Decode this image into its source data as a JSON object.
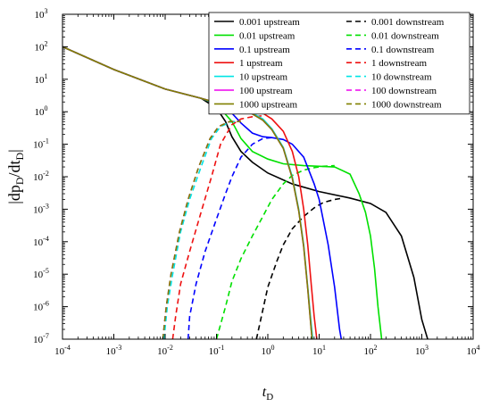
{
  "chart_data": {
    "type": "line",
    "xscale": "log",
    "yscale": "log",
    "xlim": [
      0.0001,
      10000
    ],
    "ylim": [
      1e-07,
      1000
    ],
    "grid": false,
    "legend_position": "top-right",
    "xlabel": {
      "main": "t",
      "sub": "D"
    },
    "ylabel": {
      "prefix": "|dp",
      "sub1": "D",
      "mid": "/dt",
      "sub2": "D",
      "suffix": "|"
    },
    "x_ticks": [
      {
        "base": "10",
        "exp": "-4",
        "value": 0.0001
      },
      {
        "base": "10",
        "exp": "-3",
        "value": 0.001
      },
      {
        "base": "10",
        "exp": "-2",
        "value": 0.01
      },
      {
        "base": "10",
        "exp": "-1",
        "value": 0.1
      },
      {
        "base": "10",
        "exp": "0",
        "value": 1
      },
      {
        "base": "10",
        "exp": "1",
        "value": 10
      },
      {
        "base": "10",
        "exp": "2",
        "value": 100
      },
      {
        "base": "10",
        "exp": "3",
        "value": 1000
      },
      {
        "base": "10",
        "exp": "4",
        "value": 10000
      }
    ],
    "y_ticks": [
      {
        "base": "10",
        "exp": "-7",
        "value": 1e-07
      },
      {
        "base": "10",
        "exp": "-6",
        "value": 1e-06
      },
      {
        "base": "10",
        "exp": "-5",
        "value": 1e-05
      },
      {
        "base": "10",
        "exp": "-4",
        "value": 0.0001
      },
      {
        "base": "10",
        "exp": "-3",
        "value": 0.001
      },
      {
        "base": "10",
        "exp": "-2",
        "value": 0.01
      },
      {
        "base": "10",
        "exp": "-1",
        "value": 0.1
      },
      {
        "base": "10",
        "exp": "0",
        "value": 1
      },
      {
        "base": "10",
        "exp": "1",
        "value": 10
      },
      {
        "base": "10",
        "exp": "2",
        "value": 100
      },
      {
        "base": "10",
        "exp": "3",
        "value": 1000
      }
    ],
    "series": [
      {
        "name": "0.001 upstream",
        "color": "#000000",
        "dash": "solid",
        "points": [
          [
            0.0001,
            100
          ],
          [
            0.001,
            20
          ],
          [
            0.01,
            5
          ],
          [
            0.05,
            2.6
          ],
          [
            0.1,
            1.3
          ],
          [
            0.15,
            0.5
          ],
          [
            0.2,
            0.17
          ],
          [
            0.3,
            0.06
          ],
          [
            0.5,
            0.028
          ],
          [
            1,
            0.013
          ],
          [
            3,
            0.006
          ],
          [
            10,
            0.0035
          ],
          [
            40,
            0.0022
          ],
          [
            100,
            0.0015
          ],
          [
            200,
            0.0008
          ],
          [
            400,
            0.00015
          ],
          [
            700,
            8e-06
          ],
          [
            1000,
            4e-07
          ],
          [
            1300,
            1e-07
          ]
        ]
      },
      {
        "name": "0.001 downstream",
        "color": "#000000",
        "dash": "dashed",
        "points": [
          [
            0.6,
            1e-07
          ],
          [
            0.8,
            8e-07
          ],
          [
            1,
            4e-06
          ],
          [
            1.5,
            2.5e-05
          ],
          [
            2,
            8e-05
          ],
          [
            3,
            0.00025
          ],
          [
            5,
            0.0006
          ],
          [
            8,
            0.0011
          ],
          [
            12,
            0.0016
          ],
          [
            20,
            0.002
          ],
          [
            30,
            0.0022
          ]
        ]
      },
      {
        "name": "0.01 upstream",
        "color": "#00e000",
        "dash": "solid",
        "points": [
          [
            0.0001,
            100
          ],
          [
            0.001,
            20
          ],
          [
            0.01,
            5
          ],
          [
            0.05,
            2.6
          ],
          [
            0.1,
            1.7
          ],
          [
            0.2,
            0.5
          ],
          [
            0.3,
            0.15
          ],
          [
            0.5,
            0.06
          ],
          [
            1,
            0.035
          ],
          [
            2,
            0.025
          ],
          [
            5,
            0.022
          ],
          [
            10,
            0.021
          ],
          [
            20,
            0.02
          ],
          [
            40,
            0.012
          ],
          [
            60,
            0.003
          ],
          [
            80,
            0.0008
          ],
          [
            100,
            0.00015
          ],
          [
            120,
            1.5e-05
          ],
          [
            140,
            1e-06
          ],
          [
            165,
            1e-07
          ]
        ]
      },
      {
        "name": "0.01 downstream",
        "color": "#00e000",
        "dash": "dashed",
        "points": [
          [
            0.1,
            1e-07
          ],
          [
            0.15,
            1e-06
          ],
          [
            0.2,
            6e-06
          ],
          [
            0.3,
            3e-05
          ],
          [
            0.5,
            0.00015
          ],
          [
            0.8,
            0.0006
          ],
          [
            1.2,
            0.002
          ],
          [
            2,
            0.006
          ],
          [
            3,
            0.011
          ],
          [
            5,
            0.016
          ],
          [
            8,
            0.019
          ],
          [
            12,
            0.021
          ],
          [
            20,
            0.022
          ]
        ]
      },
      {
        "name": "0.1 upstream",
        "color": "#0000ff",
        "dash": "solid",
        "points": [
          [
            0.0001,
            100
          ],
          [
            0.001,
            20
          ],
          [
            0.01,
            5
          ],
          [
            0.05,
            2.6
          ],
          [
            0.1,
            1.8
          ],
          [
            0.2,
            0.9
          ],
          [
            0.3,
            0.45
          ],
          [
            0.5,
            0.22
          ],
          [
            0.8,
            0.17
          ],
          [
            1.2,
            0.16
          ],
          [
            2,
            0.14
          ],
          [
            3,
            0.1
          ],
          [
            5,
            0.04
          ],
          [
            8,
            0.006
          ],
          [
            10,
            0.002
          ],
          [
            15,
            8e-05
          ],
          [
            20,
            4e-06
          ],
          [
            25,
            2e-07
          ],
          [
            27,
            1e-07
          ]
        ]
      },
      {
        "name": "0.1 downstream",
        "color": "#0000ff",
        "dash": "dashed",
        "points": [
          [
            0.028,
            1e-07
          ],
          [
            0.03,
            5e-07
          ],
          [
            0.04,
            5e-06
          ],
          [
            0.06,
            5e-05
          ],
          [
            0.1,
            0.0005
          ],
          [
            0.15,
            0.003
          ],
          [
            0.2,
            0.01
          ],
          [
            0.3,
            0.04
          ],
          [
            0.5,
            0.1
          ],
          [
            0.8,
            0.15
          ],
          [
            1.2,
            0.16
          ]
        ]
      },
      {
        "name": "1 upstream",
        "color": "#ee1111",
        "dash": "solid",
        "points": [
          [
            0.0001,
            100
          ],
          [
            0.001,
            20
          ],
          [
            0.01,
            5
          ],
          [
            0.05,
            2.6
          ],
          [
            0.1,
            1.9
          ],
          [
            0.3,
            1.3
          ],
          [
            0.5,
            1.1
          ],
          [
            0.8,
            0.9
          ],
          [
            1.2,
            0.6
          ],
          [
            2,
            0.25
          ],
          [
            3,
            0.06
          ],
          [
            4,
            0.01
          ],
          [
            5,
            0.001
          ],
          [
            6,
            8e-05
          ],
          [
            7,
            5e-06
          ],
          [
            8,
            5e-07
          ],
          [
            9,
            1e-07
          ]
        ]
      },
      {
        "name": "1 downstream",
        "color": "#ee1111",
        "dash": "dashed",
        "points": [
          [
            0.014,
            1e-07
          ],
          [
            0.016,
            5e-07
          ],
          [
            0.02,
            5e-06
          ],
          [
            0.03,
            5e-05
          ],
          [
            0.05,
            0.0008
          ],
          [
            0.08,
            0.01
          ],
          [
            0.12,
            0.1
          ],
          [
            0.2,
            0.4
          ],
          [
            0.3,
            0.6
          ],
          [
            0.5,
            0.7
          ],
          [
            0.8,
            0.75
          ]
        ]
      },
      {
        "name": "10 upstream",
        "color": "#00e5e5",
        "dash": "solid",
        "points": [
          [
            0.0001,
            100
          ],
          [
            0.001,
            20
          ],
          [
            0.01,
            5
          ],
          [
            0.05,
            2.6
          ],
          [
            0.1,
            1.9
          ],
          [
            0.2,
            1.5
          ],
          [
            0.4,
            1.1
          ],
          [
            0.8,
            0.6
          ],
          [
            1.2,
            0.3
          ],
          [
            2,
            0.08
          ],
          [
            3,
            0.01
          ],
          [
            4,
            0.001
          ],
          [
            5,
            8e-05
          ],
          [
            6,
            4e-06
          ],
          [
            7,
            3e-07
          ],
          [
            7.5,
            1e-07
          ]
        ]
      },
      {
        "name": "10 downstream",
        "color": "#00e5e5",
        "dash": "dashed",
        "points": [
          [
            0.0095,
            1e-07
          ],
          [
            0.011,
            1e-06
          ],
          [
            0.014,
            1e-05
          ],
          [
            0.02,
            0.0002
          ],
          [
            0.03,
            0.002
          ],
          [
            0.05,
            0.02
          ],
          [
            0.08,
            0.15
          ],
          [
            0.12,
            0.35
          ],
          [
            0.2,
            0.5
          ],
          [
            0.3,
            0.5
          ]
        ]
      },
      {
        "name": "100 upstream",
        "color": "#ee00ee",
        "dash": "solid",
        "points": [
          [
            0.0001,
            100
          ],
          [
            0.001,
            20
          ],
          [
            0.01,
            5
          ],
          [
            0.05,
            2.6
          ],
          [
            0.1,
            1.9
          ],
          [
            0.2,
            1.5
          ],
          [
            0.4,
            1.05
          ],
          [
            0.8,
            0.55
          ],
          [
            1.2,
            0.28
          ],
          [
            2,
            0.075
          ],
          [
            3,
            0.009
          ],
          [
            4,
            0.0009
          ],
          [
            5,
            7e-05
          ],
          [
            6,
            3.5e-06
          ],
          [
            7,
            2e-07
          ],
          [
            7.3,
            1e-07
          ]
        ]
      },
      {
        "name": "100 downstream",
        "color": "#ee00ee",
        "dash": "dashed",
        "points": [
          [
            0.009,
            1e-07
          ],
          [
            0.0105,
            1e-06
          ],
          [
            0.013,
            1e-05
          ],
          [
            0.019,
            0.0002
          ],
          [
            0.028,
            0.002
          ],
          [
            0.045,
            0.02
          ],
          [
            0.075,
            0.15
          ],
          [
            0.11,
            0.35
          ],
          [
            0.18,
            0.5
          ],
          [
            0.3,
            0.5
          ]
        ]
      },
      {
        "name": "1000 upstream",
        "color": "#808000",
        "dash": "solid",
        "points": [
          [
            0.0001,
            100
          ],
          [
            0.001,
            20
          ],
          [
            0.01,
            5
          ],
          [
            0.05,
            2.6
          ],
          [
            0.1,
            1.9
          ],
          [
            0.2,
            1.5
          ],
          [
            0.4,
            1.05
          ],
          [
            0.8,
            0.55
          ],
          [
            1.2,
            0.28
          ],
          [
            2,
            0.075
          ],
          [
            3,
            0.009
          ],
          [
            4,
            0.0009
          ],
          [
            5,
            7e-05
          ],
          [
            6,
            3.5e-06
          ],
          [
            7,
            2e-07
          ],
          [
            7.3,
            1e-07
          ]
        ]
      },
      {
        "name": "1000 downstream",
        "color": "#808000",
        "dash": "dashed",
        "points": [
          [
            0.009,
            1e-07
          ],
          [
            0.0105,
            1e-06
          ],
          [
            0.013,
            1e-05
          ],
          [
            0.019,
            0.0002
          ],
          [
            0.028,
            0.002
          ],
          [
            0.045,
            0.02
          ],
          [
            0.075,
            0.15
          ],
          [
            0.11,
            0.35
          ],
          [
            0.18,
            0.5
          ],
          [
            0.3,
            0.5
          ]
        ]
      }
    ]
  }
}
